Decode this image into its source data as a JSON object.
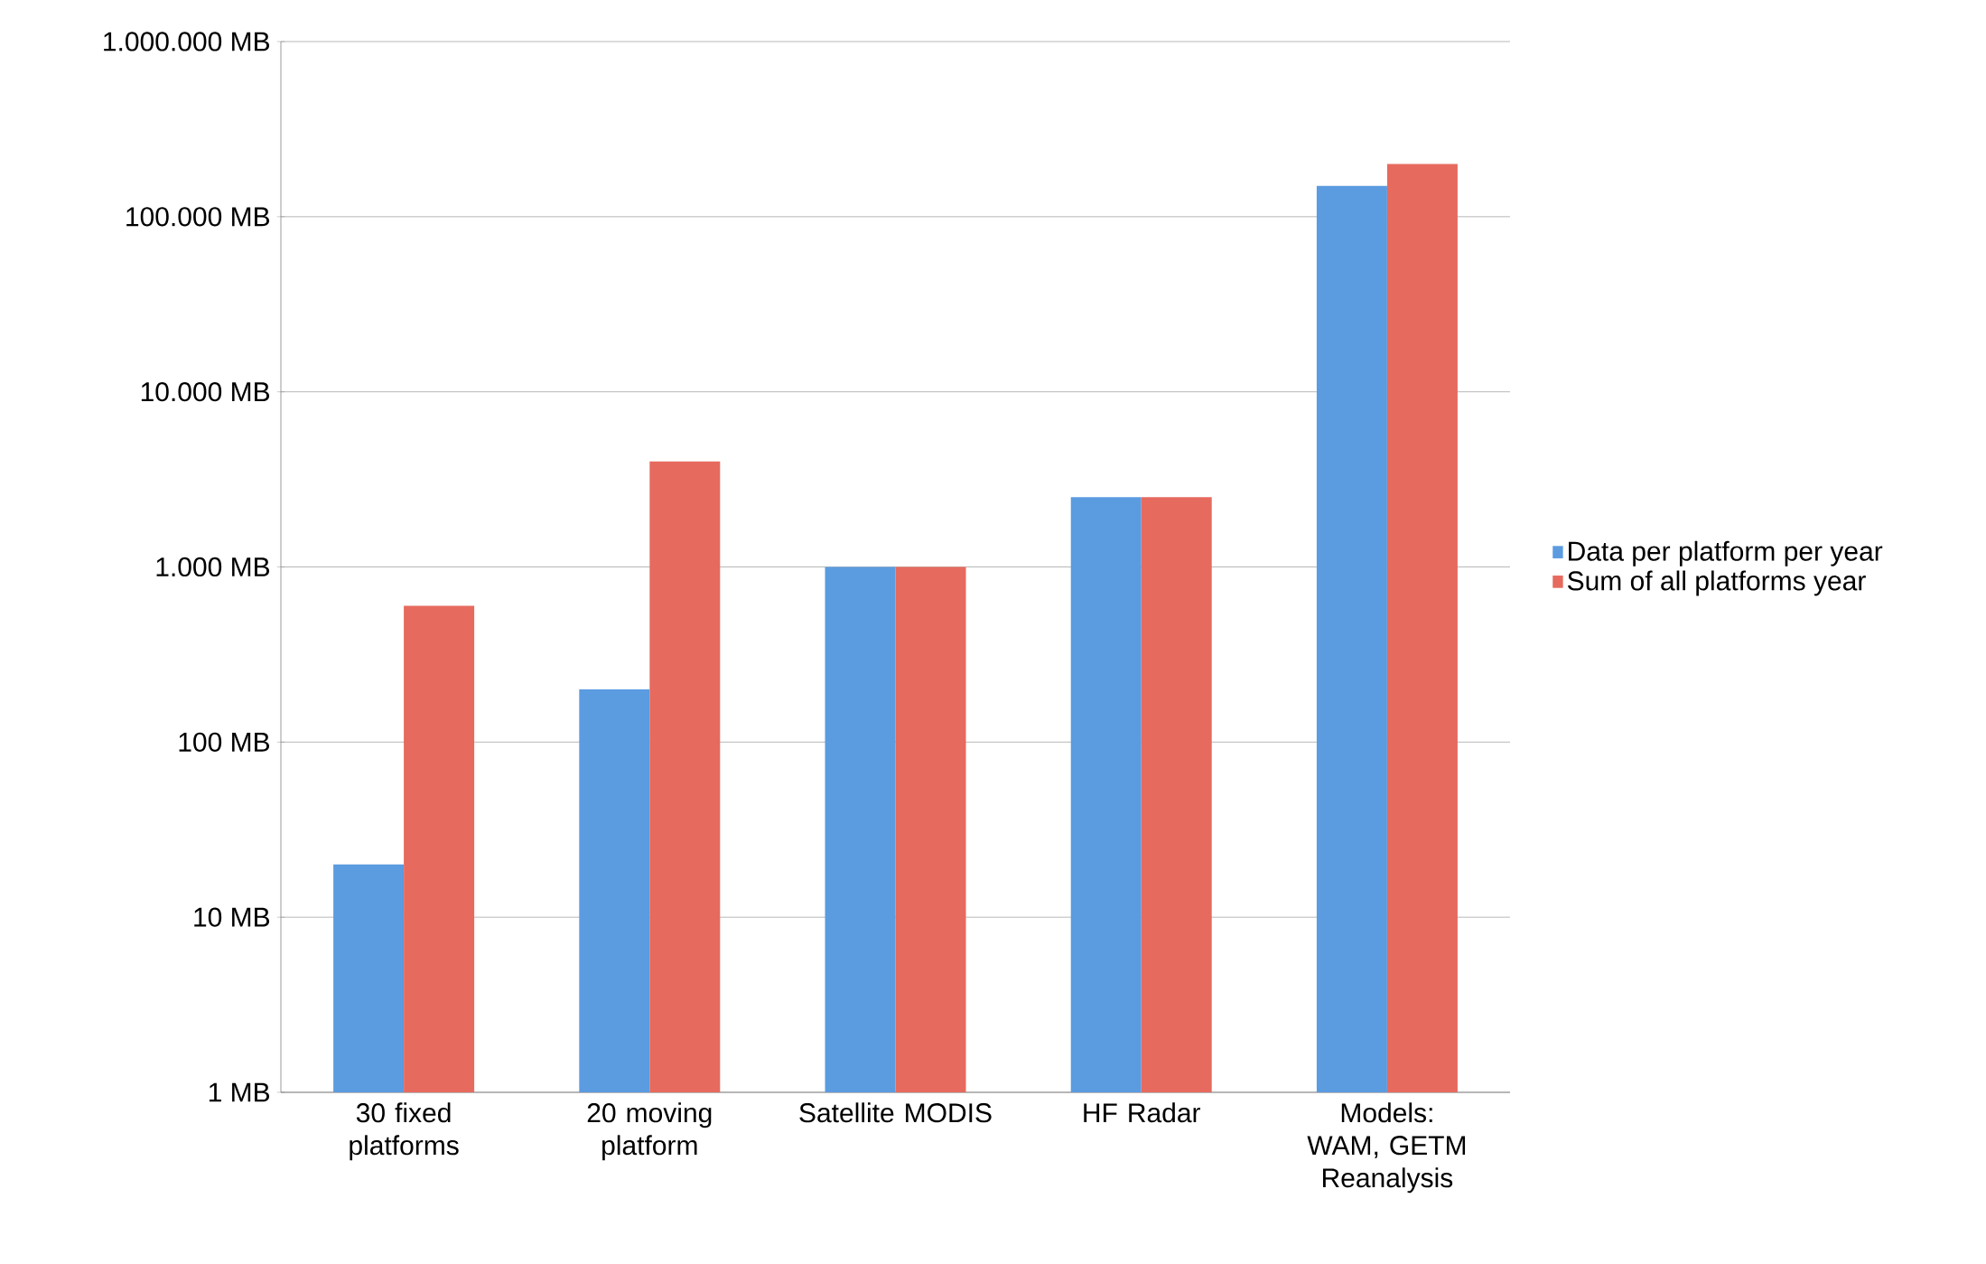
{
  "chart_data": {
    "type": "bar",
    "log": "y",
    "grid": "y",
    "legend": "right",
    "categories": [
      "30 fixed platforms",
      "20 moving platform",
      "Satellite MODIS",
      "HF Radar",
      "Models: WAM, GETM Reanalysis"
    ],
    "series": [
      {
        "name": "Data per platform per year",
        "color": "#5b9be0",
        "values": [
          20,
          200,
          1000,
          2500,
          150000
        ]
      },
      {
        "name": "Sum of all platforms year",
        "color": "#e66a5e",
        "values": [
          600,
          4000,
          1000,
          2500,
          200000
        ]
      }
    ],
    "ylim": [
      1,
      1000000
    ],
    "yticks": [
      {
        "value": 1,
        "label": "1 MB"
      },
      {
        "value": 10,
        "label": "10 MB"
      },
      {
        "value": 100,
        "label": "100 MB"
      },
      {
        "value": 1000,
        "label": "1.000 MB"
      },
      {
        "value": 10000,
        "label": "10.000 MB"
      },
      {
        "value": 100000,
        "label": "100.000 MB"
      },
      {
        "value": 1000000,
        "label": "1.000.000 MB"
      }
    ]
  }
}
